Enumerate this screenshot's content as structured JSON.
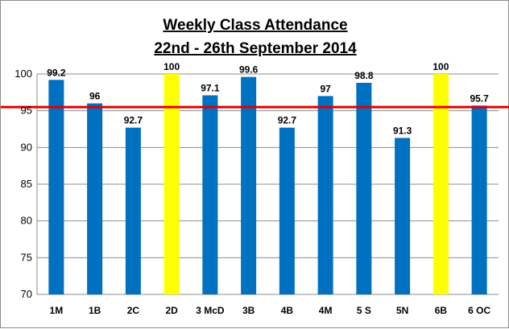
{
  "chart_data": {
    "type": "bar",
    "title": "Weekly Class Attendance",
    "subtitle": "22nd - 26th September 2014",
    "categories": [
      "1M",
      "1B",
      "2C",
      "2D",
      "3 McD",
      "3B",
      "4B",
      "4M",
      "5 S",
      "5N",
      "6B",
      "6 OC"
    ],
    "values": [
      99.2,
      96,
      92.7,
      100,
      97.1,
      99.6,
      92.7,
      97,
      98.8,
      91.3,
      100,
      95.7
    ],
    "data_labels": [
      "99.2",
      "96",
      "92.7",
      "100",
      "97.1",
      "99.6",
      "92.7",
      "97",
      "98.8",
      "91.3",
      "100",
      "95.7"
    ],
    "y_ticks": [
      "70",
      "75",
      "80",
      "85",
      "90",
      "95",
      "100"
    ],
    "ylim": [
      70,
      100
    ],
    "reference_line": 95.5,
    "grid": true,
    "legend": "none",
    "colors": {
      "bar_default": "#0070c0",
      "bar_highlight": "#ffff00",
      "reference_line": "#e00000",
      "grid": "#8c8c8c"
    },
    "highlight_categories": [
      "2D",
      "6B"
    ]
  }
}
